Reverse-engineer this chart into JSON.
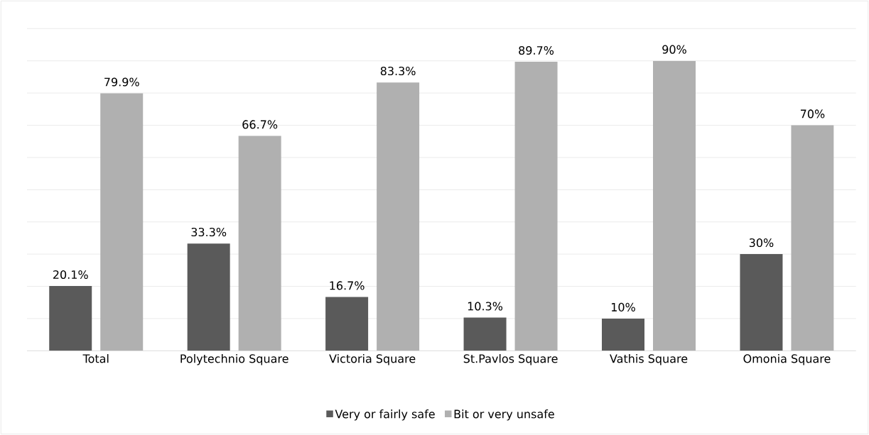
{
  "chart_data": {
    "type": "bar",
    "categories": [
      "Total",
      "Polytechnio Square",
      "Victoria Square",
      "St.Pavlos Square",
      "Vathis Square",
      "Omonia Square"
    ],
    "series": [
      {
        "name": "Very or fairly safe",
        "color": "#5a5a5a",
        "values": [
          20.1,
          33.3,
          16.7,
          10.3,
          10,
          30
        ],
        "value_labels": [
          "20.1%",
          "33.3%",
          "16.7%",
          "10.3%",
          "10%",
          "30%"
        ]
      },
      {
        "name": "Bit or very unsafe",
        "color": "#b0b0b0",
        "values": [
          79.9,
          66.7,
          83.3,
          89.7,
          90,
          70
        ],
        "value_labels": [
          "79.9%",
          "66.7%",
          "83.3%",
          "89.7%",
          "90%",
          "70%"
        ]
      }
    ],
    "ylim": [
      0,
      100
    ],
    "tick_labels": "x",
    "grid": "y",
    "legend": "bottom"
  }
}
